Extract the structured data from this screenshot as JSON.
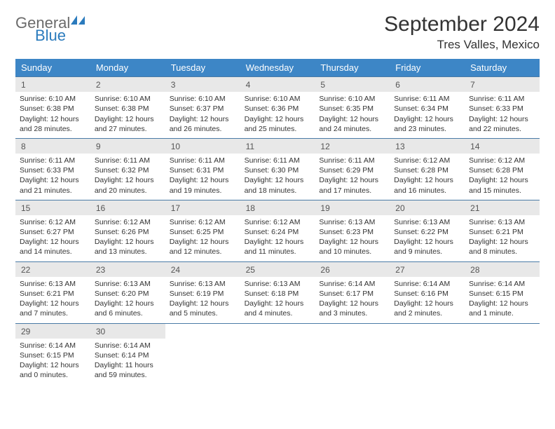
{
  "logo": {
    "text1": "General",
    "text2": "Blue"
  },
  "title": "September 2024",
  "location": "Tres Valles, Mexico",
  "colors": {
    "header_bg": "#3d86c6",
    "header_text": "#ffffff",
    "daynum_bg": "#e8e8e8",
    "row_border": "#4a7ba6",
    "logo_gray": "#6b6b6b",
    "logo_blue": "#2b7bbd"
  },
  "weekdays": [
    "Sunday",
    "Monday",
    "Tuesday",
    "Wednesday",
    "Thursday",
    "Friday",
    "Saturday"
  ],
  "weeks": [
    [
      {
        "n": "1",
        "sr": "Sunrise: 6:10 AM",
        "ss": "Sunset: 6:38 PM",
        "dl": "Daylight: 12 hours and 28 minutes."
      },
      {
        "n": "2",
        "sr": "Sunrise: 6:10 AM",
        "ss": "Sunset: 6:38 PM",
        "dl": "Daylight: 12 hours and 27 minutes."
      },
      {
        "n": "3",
        "sr": "Sunrise: 6:10 AM",
        "ss": "Sunset: 6:37 PM",
        "dl": "Daylight: 12 hours and 26 minutes."
      },
      {
        "n": "4",
        "sr": "Sunrise: 6:10 AM",
        "ss": "Sunset: 6:36 PM",
        "dl": "Daylight: 12 hours and 25 minutes."
      },
      {
        "n": "5",
        "sr": "Sunrise: 6:10 AM",
        "ss": "Sunset: 6:35 PM",
        "dl": "Daylight: 12 hours and 24 minutes."
      },
      {
        "n": "6",
        "sr": "Sunrise: 6:11 AM",
        "ss": "Sunset: 6:34 PM",
        "dl": "Daylight: 12 hours and 23 minutes."
      },
      {
        "n": "7",
        "sr": "Sunrise: 6:11 AM",
        "ss": "Sunset: 6:33 PM",
        "dl": "Daylight: 12 hours and 22 minutes."
      }
    ],
    [
      {
        "n": "8",
        "sr": "Sunrise: 6:11 AM",
        "ss": "Sunset: 6:33 PM",
        "dl": "Daylight: 12 hours and 21 minutes."
      },
      {
        "n": "9",
        "sr": "Sunrise: 6:11 AM",
        "ss": "Sunset: 6:32 PM",
        "dl": "Daylight: 12 hours and 20 minutes."
      },
      {
        "n": "10",
        "sr": "Sunrise: 6:11 AM",
        "ss": "Sunset: 6:31 PM",
        "dl": "Daylight: 12 hours and 19 minutes."
      },
      {
        "n": "11",
        "sr": "Sunrise: 6:11 AM",
        "ss": "Sunset: 6:30 PM",
        "dl": "Daylight: 12 hours and 18 minutes."
      },
      {
        "n": "12",
        "sr": "Sunrise: 6:11 AM",
        "ss": "Sunset: 6:29 PM",
        "dl": "Daylight: 12 hours and 17 minutes."
      },
      {
        "n": "13",
        "sr": "Sunrise: 6:12 AM",
        "ss": "Sunset: 6:28 PM",
        "dl": "Daylight: 12 hours and 16 minutes."
      },
      {
        "n": "14",
        "sr": "Sunrise: 6:12 AM",
        "ss": "Sunset: 6:28 PM",
        "dl": "Daylight: 12 hours and 15 minutes."
      }
    ],
    [
      {
        "n": "15",
        "sr": "Sunrise: 6:12 AM",
        "ss": "Sunset: 6:27 PM",
        "dl": "Daylight: 12 hours and 14 minutes."
      },
      {
        "n": "16",
        "sr": "Sunrise: 6:12 AM",
        "ss": "Sunset: 6:26 PM",
        "dl": "Daylight: 12 hours and 13 minutes."
      },
      {
        "n": "17",
        "sr": "Sunrise: 6:12 AM",
        "ss": "Sunset: 6:25 PM",
        "dl": "Daylight: 12 hours and 12 minutes."
      },
      {
        "n": "18",
        "sr": "Sunrise: 6:12 AM",
        "ss": "Sunset: 6:24 PM",
        "dl": "Daylight: 12 hours and 11 minutes."
      },
      {
        "n": "19",
        "sr": "Sunrise: 6:13 AM",
        "ss": "Sunset: 6:23 PM",
        "dl": "Daylight: 12 hours and 10 minutes."
      },
      {
        "n": "20",
        "sr": "Sunrise: 6:13 AM",
        "ss": "Sunset: 6:22 PM",
        "dl": "Daylight: 12 hours and 9 minutes."
      },
      {
        "n": "21",
        "sr": "Sunrise: 6:13 AM",
        "ss": "Sunset: 6:21 PM",
        "dl": "Daylight: 12 hours and 8 minutes."
      }
    ],
    [
      {
        "n": "22",
        "sr": "Sunrise: 6:13 AM",
        "ss": "Sunset: 6:21 PM",
        "dl": "Daylight: 12 hours and 7 minutes."
      },
      {
        "n": "23",
        "sr": "Sunrise: 6:13 AM",
        "ss": "Sunset: 6:20 PM",
        "dl": "Daylight: 12 hours and 6 minutes."
      },
      {
        "n": "24",
        "sr": "Sunrise: 6:13 AM",
        "ss": "Sunset: 6:19 PM",
        "dl": "Daylight: 12 hours and 5 minutes."
      },
      {
        "n": "25",
        "sr": "Sunrise: 6:13 AM",
        "ss": "Sunset: 6:18 PM",
        "dl": "Daylight: 12 hours and 4 minutes."
      },
      {
        "n": "26",
        "sr": "Sunrise: 6:14 AM",
        "ss": "Sunset: 6:17 PM",
        "dl": "Daylight: 12 hours and 3 minutes."
      },
      {
        "n": "27",
        "sr": "Sunrise: 6:14 AM",
        "ss": "Sunset: 6:16 PM",
        "dl": "Daylight: 12 hours and 2 minutes."
      },
      {
        "n": "28",
        "sr": "Sunrise: 6:14 AM",
        "ss": "Sunset: 6:15 PM",
        "dl": "Daylight: 12 hours and 1 minute."
      }
    ],
    [
      {
        "n": "29",
        "sr": "Sunrise: 6:14 AM",
        "ss": "Sunset: 6:15 PM",
        "dl": "Daylight: 12 hours and 0 minutes."
      },
      {
        "n": "30",
        "sr": "Sunrise: 6:14 AM",
        "ss": "Sunset: 6:14 PM",
        "dl": "Daylight: 11 hours and 59 minutes."
      },
      null,
      null,
      null,
      null,
      null
    ]
  ]
}
